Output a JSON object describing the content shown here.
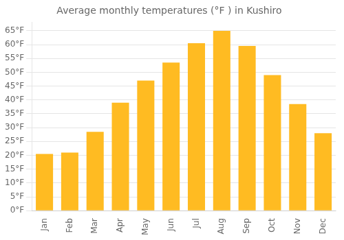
{
  "chart_data": {
    "type": "bar",
    "title": "Average monthly temperatures (°F ) in Kushiro",
    "categories": [
      "Jan",
      "Feb",
      "Mar",
      "Apr",
      "May",
      "Jun",
      "Jul",
      "Aug",
      "Sep",
      "Oct",
      "Nov",
      "Dec"
    ],
    "values": [
      20.5,
      21.0,
      28.5,
      39.0,
      47.0,
      53.5,
      60.5,
      65.0,
      59.5,
      49.0,
      38.5,
      28.0
    ],
    "color": "#FFBB22",
    "ylim": [
      0,
      68
    ],
    "yticks": [
      {
        "value": 0,
        "label": "0°F"
      },
      {
        "value": 5,
        "label": "5°F"
      },
      {
        "value": 10,
        "label": "10°F"
      },
      {
        "value": 15,
        "label": "15°F"
      },
      {
        "value": 20,
        "label": "20°F"
      },
      {
        "value": 25,
        "label": "25°F"
      },
      {
        "value": 30,
        "label": "30°F"
      },
      {
        "value": 35,
        "label": "35°F"
      },
      {
        "value": 40,
        "label": "40°F"
      },
      {
        "value": 45,
        "label": "45°F"
      },
      {
        "value": 50,
        "label": "50°F"
      },
      {
        "value": 55,
        "label": "55°F"
      },
      {
        "value": 60,
        "label": "60°F"
      },
      {
        "value": 65,
        "label": "65°F"
      }
    ],
    "grid": true
  }
}
